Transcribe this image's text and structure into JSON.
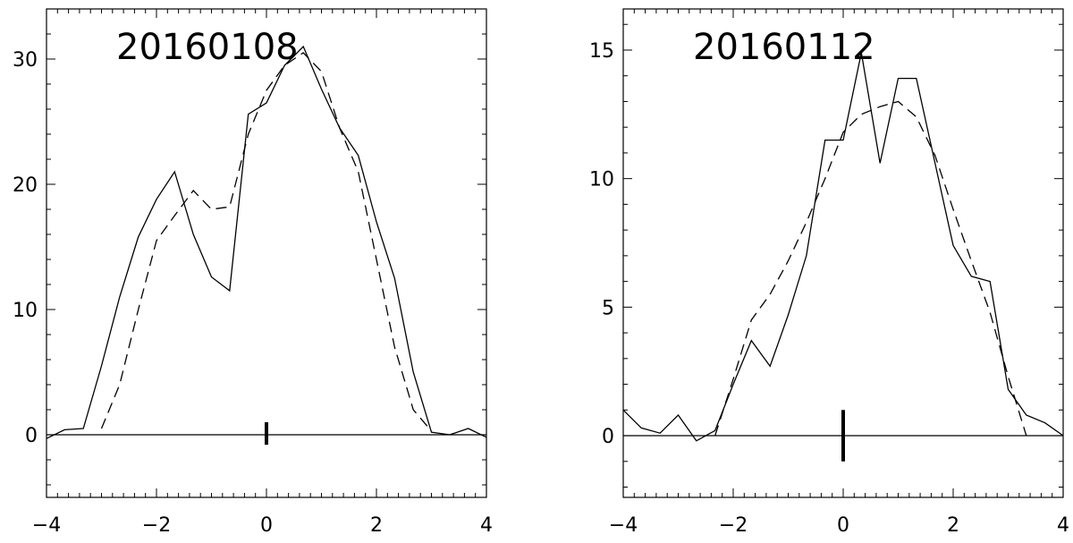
{
  "chart_data": [
    {
      "type": "line",
      "title": "20160108",
      "xlabel": "",
      "ylabel": "",
      "xlim": [
        -4,
        4
      ],
      "ylim": [
        -5,
        34
      ],
      "xticks": [
        -4,
        -2,
        0,
        2,
        4
      ],
      "xtick_labels": [
        "−4",
        "−2",
        "0",
        "2",
        "4"
      ],
      "yticks": [
        0,
        10,
        20,
        30
      ],
      "ytick_labels": [
        "0",
        "10",
        "20",
        "30"
      ],
      "grid": false,
      "zero_line": true,
      "marker": {
        "x": 0,
        "y_range": [
          -0.8,
          1.0
        ]
      },
      "series": [
        {
          "style": "solid",
          "x": [
            -4.0,
            -3.67,
            -3.33,
            -3.0,
            -2.67,
            -2.33,
            -2.0,
            -1.67,
            -1.33,
            -1.0,
            -0.67,
            -0.33,
            0.0,
            0.33,
            0.67,
            1.0,
            1.33,
            1.67,
            2.0,
            2.33,
            2.67,
            3.0,
            3.33,
            3.67,
            4.0
          ],
          "y": [
            -0.3,
            0.4,
            0.5,
            5.5,
            11.0,
            15.8,
            18.8,
            21.0,
            16.0,
            12.6,
            11.5,
            25.6,
            26.5,
            29.5,
            31.0,
            27.6,
            24.5,
            22.3,
            17.0,
            12.5,
            5.0,
            0.2,
            0.0,
            0.5,
            -0.2
          ]
        },
        {
          "style": "dashed",
          "x": [
            -3.0,
            -2.67,
            -2.33,
            -2.0,
            -1.67,
            -1.33,
            -1.0,
            -0.67,
            -0.33,
            0.0,
            0.33,
            0.67,
            1.0,
            1.33,
            1.67,
            2.0,
            2.33,
            2.67,
            3.0
          ],
          "y": [
            0.5,
            4.0,
            10.0,
            15.5,
            17.5,
            19.5,
            18.0,
            18.2,
            24.0,
            27.5,
            29.5,
            30.5,
            29.0,
            24.5,
            21.0,
            14.0,
            7.0,
            2.0,
            0.3
          ]
        }
      ]
    },
    {
      "type": "line",
      "title": "20160112",
      "xlabel": "",
      "ylabel": "",
      "xlim": [
        -4,
        4
      ],
      "ylim": [
        -2.4,
        16.6
      ],
      "xticks": [
        -4,
        -2,
        0,
        2,
        4
      ],
      "xtick_labels": [
        "−4",
        "−2",
        "0",
        "2",
        "4"
      ],
      "yticks": [
        0,
        5,
        10,
        15
      ],
      "ytick_labels": [
        "0",
        "5",
        "10",
        "15"
      ],
      "grid": false,
      "zero_line": true,
      "marker": {
        "x": 0,
        "y_range": [
          -1.0,
          1.0
        ]
      },
      "series": [
        {
          "style": "solid",
          "x": [
            -4.0,
            -3.67,
            -3.33,
            -3.0,
            -2.67,
            -2.33,
            -2.0,
            -1.67,
            -1.33,
            -1.0,
            -0.67,
            -0.33,
            0.0,
            0.33,
            0.67,
            1.0,
            1.33,
            1.67,
            2.0,
            2.33,
            2.67,
            3.0,
            3.33,
            3.67,
            4.0
          ],
          "y": [
            1.0,
            0.3,
            0.1,
            0.8,
            -0.2,
            0.2,
            2.0,
            3.7,
            2.7,
            4.7,
            7.0,
            11.5,
            11.5,
            14.9,
            10.6,
            13.9,
            13.9,
            10.6,
            7.4,
            6.2,
            6.0,
            1.8,
            0.8,
            0.5,
            0.0
          ]
        },
        {
          "style": "dashed",
          "x": [
            -2.33,
            -2.0,
            -1.67,
            -1.33,
            -1.0,
            -0.67,
            -0.33,
            0.0,
            0.33,
            0.67,
            1.0,
            1.33,
            1.67,
            2.0,
            2.33,
            2.67,
            3.0,
            3.33
          ],
          "y": [
            0.0,
            2.2,
            4.5,
            5.5,
            6.8,
            8.3,
            10.0,
            11.8,
            12.5,
            12.8,
            13.0,
            12.4,
            10.9,
            8.8,
            6.8,
            4.8,
            2.3,
            0.0
          ]
        }
      ]
    }
  ]
}
